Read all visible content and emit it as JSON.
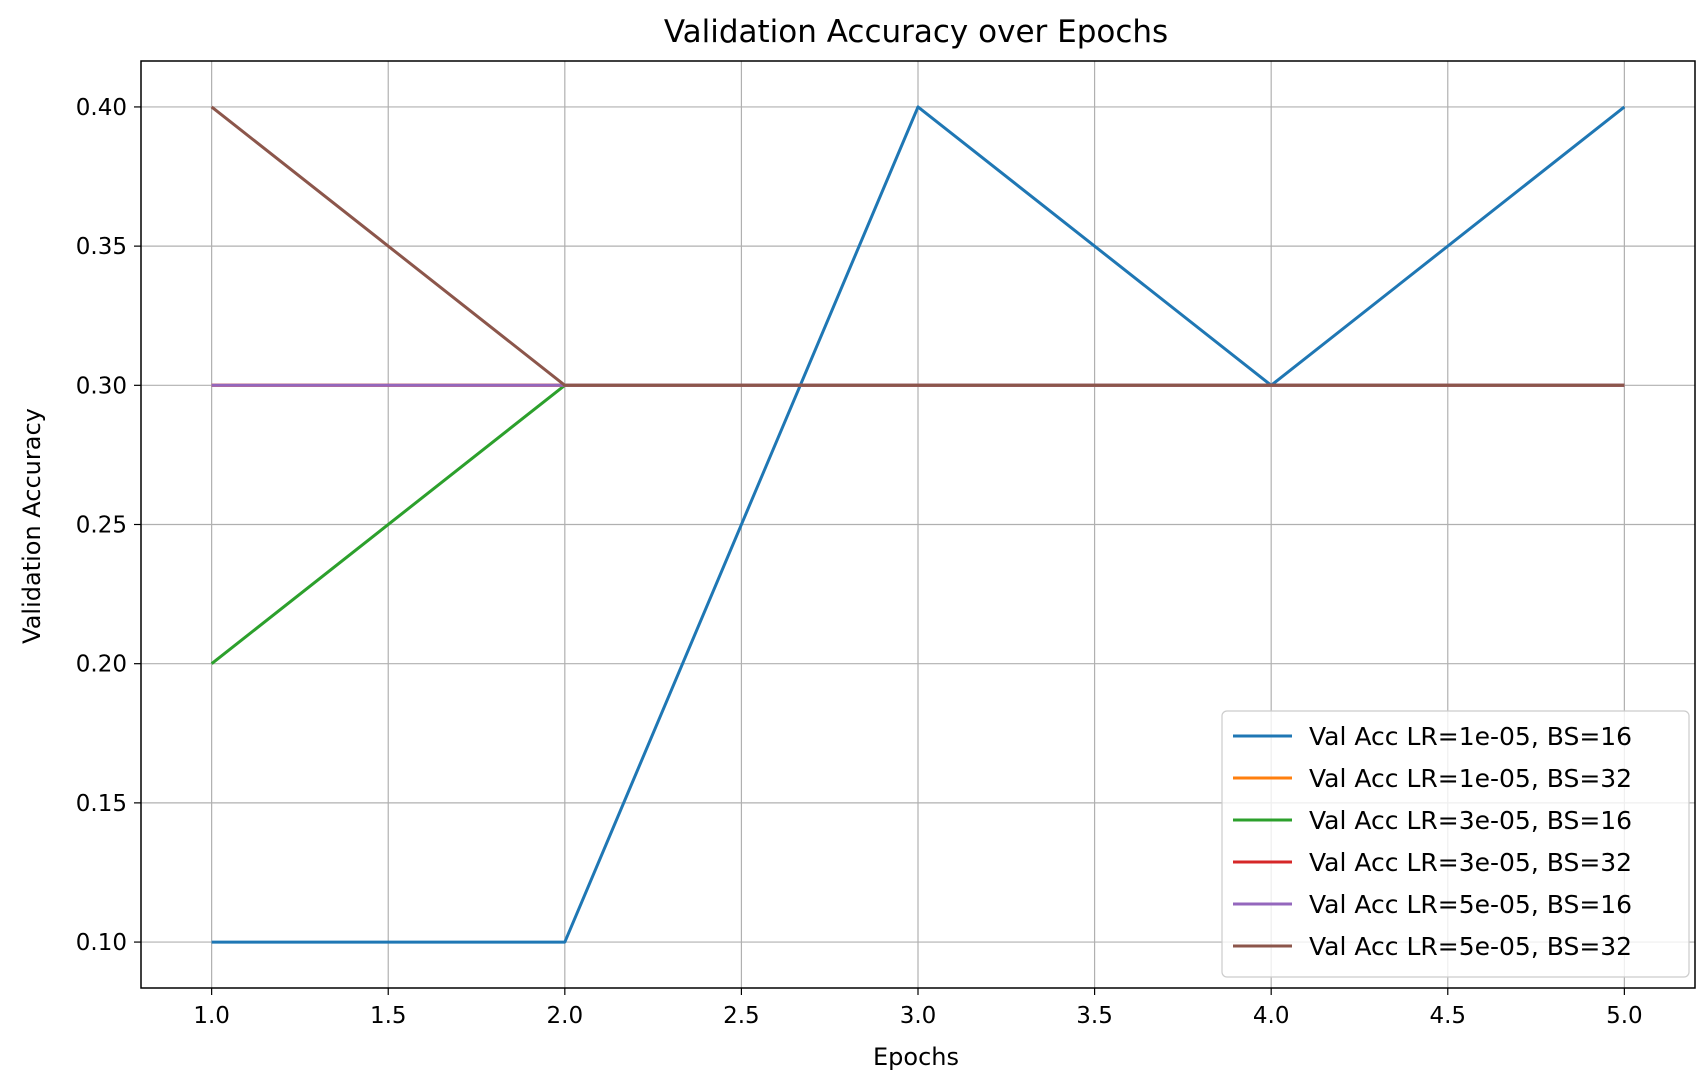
{
  "chart_data": {
    "type": "line",
    "title": "Validation Accuracy over Epochs",
    "xlabel": "Epochs",
    "ylabel": "Validation Accuracy",
    "xlim": [
      0.8,
      5.2
    ],
    "ylim": [
      0.0835,
      0.4165
    ],
    "xticks": [
      1.0,
      1.5,
      2.0,
      2.5,
      3.0,
      3.5,
      4.0,
      4.5,
      5.0
    ],
    "xtick_labels": [
      "1.0",
      "1.5",
      "2.0",
      "2.5",
      "3.0",
      "3.5",
      "4.0",
      "4.5",
      "5.0"
    ],
    "yticks": [
      0.1,
      0.15,
      0.2,
      0.25,
      0.3,
      0.35,
      0.4
    ],
    "ytick_labels": [
      "0.10",
      "0.15",
      "0.20",
      "0.25",
      "0.30",
      "0.35",
      "0.40"
    ],
    "grid": true,
    "legend_position": "bottom-right",
    "x": [
      1,
      2,
      3,
      4,
      5
    ],
    "series": [
      {
        "name": "Val Acc LR=1e-05, BS=16",
        "color": "#1f77b4",
        "values": [
          0.1,
          0.1,
          0.4,
          0.3,
          0.4
        ]
      },
      {
        "name": "Val Acc LR=1e-05, BS=32",
        "color": "#ff7f0e",
        "values": [
          0.3,
          0.3,
          0.3,
          0.3,
          0.3
        ]
      },
      {
        "name": "Val Acc LR=3e-05, BS=16",
        "color": "#2ca02c",
        "values": [
          0.2,
          0.3,
          0.3,
          0.3,
          0.3
        ]
      },
      {
        "name": "Val Acc LR=3e-05, BS=32",
        "color": "#d62728",
        "values": [
          0.3,
          0.3,
          0.3,
          0.3,
          0.3
        ]
      },
      {
        "name": "Val Acc LR=5e-05, BS=16",
        "color": "#9467bd",
        "values": [
          0.3,
          0.3,
          0.3,
          0.3,
          0.3
        ]
      },
      {
        "name": "Val Acc LR=5e-05, BS=32",
        "color": "#8c564b",
        "values": [
          0.4,
          0.3,
          0.3,
          0.3,
          0.3
        ]
      }
    ]
  }
}
